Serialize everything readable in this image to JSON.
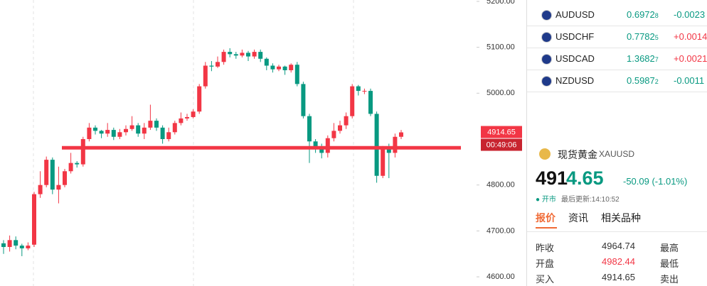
{
  "chart_data": {
    "type": "candlestick",
    "up_color": "#f23645",
    "down_color": "#089981",
    "ylim": [
      4580,
      5203
    ],
    "yticks": [
      {
        "value": 4600,
        "label": "4600.00"
      },
      {
        "value": 4700,
        "label": "4700.00"
      },
      {
        "value": 4800,
        "label": "4800.00"
      },
      {
        "value": 5000,
        "label": "5000.00"
      },
      {
        "value": 5100,
        "label": "5100.00"
      },
      {
        "value": 5200,
        "label": "5200.00"
      }
    ],
    "open": [
      4673,
      4665,
      4680,
      4668,
      4662,
      4670,
      4780,
      4800,
      4855,
      4790,
      4800,
      4830,
      4848,
      4845,
      4900,
      4925,
      4918,
      4912,
      4920,
      4905,
      4915,
      4922,
      4930,
      4912,
      4925,
      4940,
      4925,
      4900,
      4915,
      4935,
      4945,
      4948,
      4960,
      5015,
      5060,
      5058,
      5068,
      5090,
      5085,
      5082,
      5088,
      5080,
      5090,
      5075,
      5060,
      5052,
      5058,
      5050,
      5062,
      5020,
      4950,
      4895,
      4880,
      4870,
      4902,
      4918,
      4930,
      4950,
      5015,
      5005,
      5005,
      4955,
      4820,
      4880,
      4870,
      4905
    ],
    "high": [
      4680,
      4690,
      4688,
      4672,
      4675,
      4785,
      4830,
      4862,
      4860,
      4840,
      4835,
      4870,
      4852,
      4905,
      4935,
      4930,
      4920,
      4935,
      4925,
      4922,
      4930,
      4950,
      4935,
      4935,
      4975,
      4945,
      4930,
      4925,
      4940,
      4958,
      4955,
      4965,
      5020,
      5068,
      5070,
      5080,
      5095,
      5098,
      5090,
      5095,
      5092,
      5095,
      5095,
      5078,
      5065,
      5062,
      5060,
      5065,
      5068,
      5025,
      4955,
      4900,
      4890,
      4908,
      4935,
      4940,
      4958,
      5020,
      5018,
      5010,
      5010,
      4960,
      4885,
      4890,
      4912,
      4920
    ],
    "low": [
      4650,
      4655,
      4660,
      4645,
      4658,
      4665,
      4772,
      4795,
      4780,
      4760,
      4795,
      4825,
      4838,
      4840,
      4895,
      4910,
      4902,
      4905,
      4898,
      4900,
      4908,
      4918,
      4905,
      4900,
      4920,
      4918,
      4890,
      4895,
      4910,
      4930,
      4940,
      4945,
      4955,
      5010,
      5048,
      5055,
      5062,
      5078,
      5075,
      5078,
      5070,
      5075,
      5068,
      5050,
      5045,
      5048,
      5040,
      5045,
      5015,
      4945,
      4848,
      4870,
      4858,
      4860,
      4895,
      4912,
      4922,
      4945,
      4995,
      4998,
      4950,
      4805,
      4815,
      4815,
      4860,
      4900
    ],
    "close": [
      4665,
      4680,
      4668,
      4662,
      4668,
      4780,
      4800,
      4855,
      4790,
      4800,
      4830,
      4848,
      4845,
      4900,
      4925,
      4918,
      4912,
      4920,
      4905,
      4915,
      4922,
      4930,
      4912,
      4925,
      4940,
      4925,
      4900,
      4915,
      4935,
      4945,
      4948,
      4960,
      5015,
      5060,
      5058,
      5068,
      5090,
      5085,
      5082,
      5088,
      5080,
      5090,
      5075,
      5060,
      5052,
      5058,
      5050,
      5062,
      5020,
      4950,
      4895,
      4880,
      4870,
      4902,
      4918,
      4930,
      4950,
      5015,
      5005,
      5005,
      4955,
      4820,
      4880,
      4870,
      4905,
      4914.65
    ],
    "level_line": {
      "value": 4881,
      "color": "#f23645"
    },
    "last_price": {
      "value": 4914.65,
      "label": "4914.65"
    },
    "countdown": "00:49:06"
  },
  "quotes": [
    {
      "symbol": "AUDUSD",
      "price": "0.6972",
      "pip": "8",
      "change": "-0.0023"
    },
    {
      "symbol": "USDCHF",
      "price": "0.7782",
      "pip": "5",
      "change": "+0.0014"
    },
    {
      "symbol": "USDCAD",
      "price": "1.3682",
      "pip": "7",
      "change": "+0.0021"
    },
    {
      "symbol": "NZDUSD",
      "price": "0.5987",
      "pip": "2",
      "change": "-0.0011"
    }
  ],
  "instrument": {
    "name": "现货黄金",
    "code": "XAUUSD",
    "price_lead": "491",
    "price_tail": "4.65",
    "change": "-50.09 (-1.01%)",
    "status": "● 开市",
    "updated": "最后更新:14:10:52"
  },
  "tabs": [
    "报价",
    "资讯",
    "相关品种"
  ],
  "table": {
    "rows": [
      [
        "昨收",
        "4964.74",
        "最高"
      ],
      [
        "开盘",
        "4982.44",
        "最低"
      ],
      [
        "买入",
        "4914.65",
        "卖出"
      ]
    ]
  }
}
